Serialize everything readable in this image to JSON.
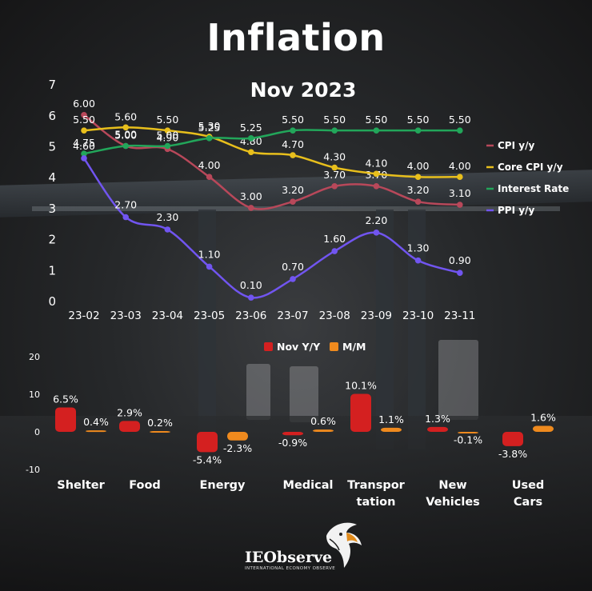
{
  "title": "Inflation",
  "subtitle": "Nov 2023",
  "brand": {
    "name": "IEObserve",
    "tagline": "INTERNATIONAL ECONOMY OBSERVE"
  },
  "chart_data": [
    {
      "type": "line",
      "categories": [
        "23-02",
        "23-03",
        "23-04",
        "23-05",
        "23-06",
        "23-07",
        "23-08",
        "23-09",
        "23-10",
        "23-11"
      ],
      "ylim": [
        0,
        7
      ],
      "yticks": [
        0,
        1,
        2,
        3,
        4,
        5,
        6,
        7
      ],
      "grid": false,
      "legend": "right",
      "series": [
        {
          "name": "CPI y/y",
          "color": "#b8485a",
          "values": [
            6.0,
            5.0,
            4.9,
            4.0,
            3.0,
            3.2,
            3.7,
            3.7,
            3.2,
            3.1
          ],
          "labels": [
            "6.00",
            "5.00",
            "4.90",
            "4.00",
            "3.00",
            "3.20",
            "3.70",
            "3.70",
            "3.20",
            "3.10"
          ]
        },
        {
          "name": "Core CPI y/y",
          "color": "#e8bf1c",
          "values": [
            5.5,
            5.6,
            5.5,
            5.3,
            4.8,
            4.7,
            4.3,
            4.1,
            4.0,
            4.0
          ],
          "labels": [
            "5.50",
            "5.60",
            "5.50",
            "5.30",
            "4.80",
            "4.70",
            "4.30",
            "4.10",
            "4.00",
            "4.00"
          ]
        },
        {
          "name": "Interest Rate",
          "color": "#22a65a",
          "values": [
            4.75,
            5.0,
            5.0,
            5.25,
            5.25,
            5.5,
            5.5,
            5.5,
            5.5,
            5.5
          ],
          "labels": [
            "4.75",
            "5.00",
            "5.00",
            "5.25",
            "5.25",
            "5.50",
            "5.50",
            "5.50",
            "5.50",
            "5.50"
          ]
        },
        {
          "name": "PPI y/y",
          "color": "#7155f0",
          "values": [
            4.6,
            2.7,
            2.3,
            1.1,
            0.1,
            0.7,
            1.6,
            2.2,
            1.3,
            0.9
          ],
          "labels": [
            "4.60",
            "2.70",
            "2.30",
            "1.10",
            "0.10",
            "0.70",
            "1.60",
            "2.20",
            "1.30",
            "0.90"
          ]
        }
      ]
    },
    {
      "type": "bar",
      "categories": [
        "Shelter",
        "Food",
        "Energy",
        "Medical",
        "Transportation",
        "New Vehicles",
        "Used Cars"
      ],
      "category_lines": [
        [
          "Shelter"
        ],
        [
          "Food"
        ],
        [
          "Energy"
        ],
        [
          "Medical"
        ],
        [
          "Transpor",
          "tation"
        ],
        [
          "New",
          "Vehicles"
        ],
        [
          "Used",
          "Cars"
        ]
      ],
      "ylim": [
        -10,
        20
      ],
      "yticks": [
        -10,
        0,
        10,
        20
      ],
      "legend": "top",
      "series": [
        {
          "name": "Nov Y/Y",
          "color": "#d42020",
          "values": [
            6.5,
            2.9,
            -5.4,
            -0.9,
            10.1,
            1.3,
            -3.8
          ],
          "labels": [
            "6.5%",
            "2.9%",
            "-5.4%",
            "-0.9%",
            "10.1%",
            "1.3%",
            "-3.8%"
          ]
        },
        {
          "name": "M/M",
          "color": "#ef8a1e",
          "values": [
            0.4,
            0.2,
            -2.3,
            0.6,
            1.1,
            -0.1,
            1.6
          ],
          "labels": [
            "0.4%",
            "0.2%",
            "-2.3%",
            "0.6%",
            "1.1%",
            "-0.1%",
            "1.6%"
          ]
        }
      ]
    }
  ]
}
